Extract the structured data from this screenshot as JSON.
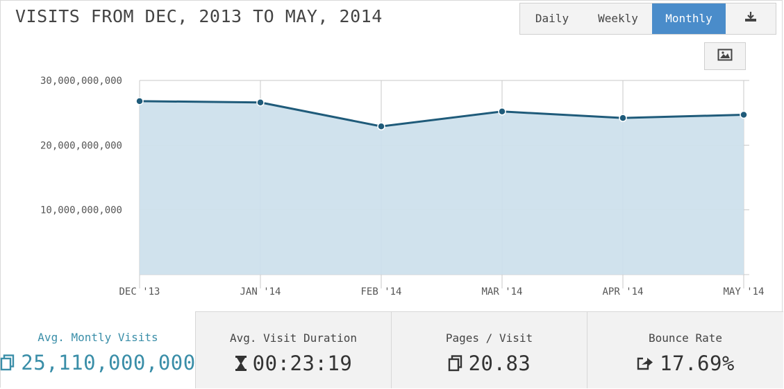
{
  "header": {
    "title": "VISITS FROM DEC, 2013 TO MAY, 2014"
  },
  "toolbar": {
    "period_buttons": [
      {
        "label": "Daily",
        "active": false
      },
      {
        "label": "Weekly",
        "active": false
      },
      {
        "label": "Monthly",
        "active": true
      }
    ],
    "download_icon": "download-icon",
    "image_icon": "image-icon"
  },
  "chart_data": {
    "type": "area",
    "title": "VISITS FROM DEC, 2013 TO MAY, 2014",
    "categories": [
      "DEC '13",
      "JAN '14",
      "FEB '14",
      "MAR '14",
      "APR '14",
      "MAY '14"
    ],
    "series": [
      {
        "values": [
          26800000000,
          26600000000,
          22900000000,
          25200000000,
          24200000000,
          24700000000
        ]
      }
    ],
    "y_ticks": [
      "10,000,000,000",
      "20,000,000,000",
      "30,000,000,000"
    ],
    "ylim": [
      0,
      30000000000
    ],
    "grid": true,
    "colors": {
      "line": "#1f5b7a",
      "fill": "#cde0ec",
      "grid": "#c8c8c8"
    }
  },
  "stats": [
    {
      "label": "Avg. Montly Visits",
      "value": "25,110,000,000",
      "icon": "pages-icon"
    },
    {
      "label": "Avg. Visit Duration",
      "value": "00:23:19",
      "icon": "hourglass-icon"
    },
    {
      "label": "Pages / Visit",
      "value": "20.83",
      "icon": "pages-icon"
    },
    {
      "label": "Bounce Rate",
      "value": "17.69%",
      "icon": "bounce-icon"
    }
  ],
  "colors": {
    "accent": "#4a8cca",
    "highlight_text": "#3a8ea8"
  }
}
